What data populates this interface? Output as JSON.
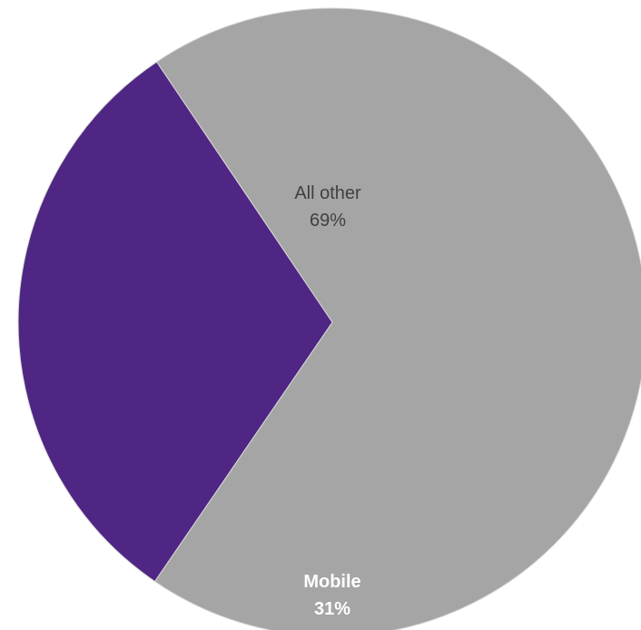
{
  "chart_data": {
    "type": "pie",
    "title": "",
    "slices": [
      {
        "label": "All other",
        "value": 69,
        "value_label": "69%",
        "color": "#a5a5a5",
        "label_class": "label-other"
      },
      {
        "label": "Mobile",
        "value": 31,
        "value_label": "31%",
        "color": "#4f2683",
        "label_class": "label-mobile"
      }
    ],
    "start_angle_deg": -124,
    "legend": "none",
    "border_color": "#d9d9d9"
  }
}
